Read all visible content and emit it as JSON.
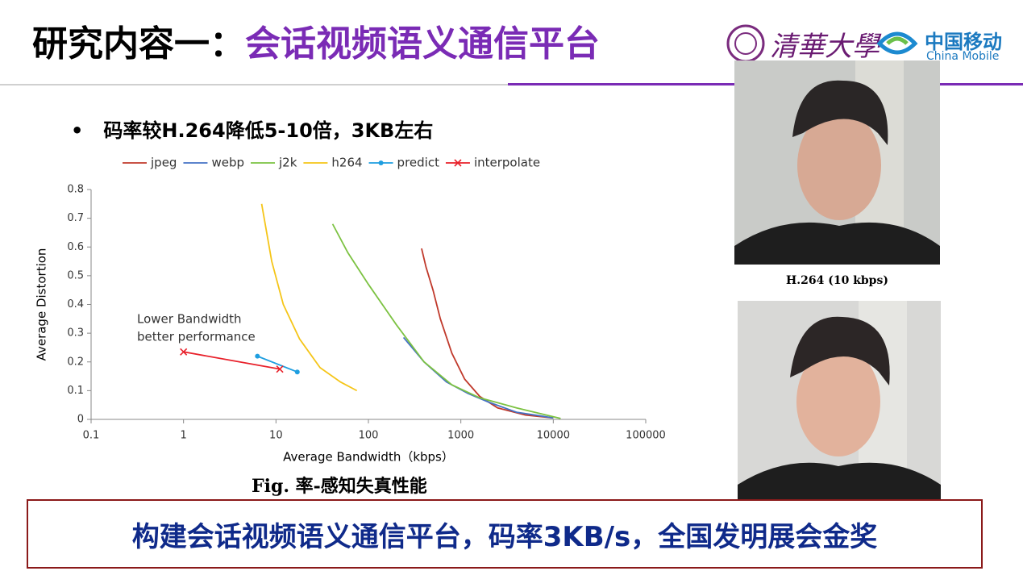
{
  "header": {
    "title_prefix": "研究内容一：",
    "title_main": "会话视频语义通信平台",
    "logo_university": "清華大學",
    "logo_company": "中国移动",
    "logo_company_en": "China Mobile"
  },
  "bullet": "码率较H.264降低5-10倍，3KB左右",
  "chart_data": {
    "type": "line",
    "xlabel": "Average Bandwidth（kbps）",
    "ylabel": "Average Distortion",
    "xlog": true,
    "xlim": [
      0.1,
      100000
    ],
    "xticks": [
      0.1,
      1,
      10,
      100,
      1000,
      10000,
      100000
    ],
    "ylim": [
      0,
      0.8
    ],
    "yticks": [
      0,
      0.1,
      0.2,
      0.3,
      0.4,
      0.5,
      0.6,
      0.7,
      0.8
    ],
    "legend": "top",
    "annotation": [
      "Lower Bandwidth",
      "better performance"
    ],
    "series": [
      {
        "name": "jpeg",
        "color": "#c0392b",
        "x": [
          376,
          420,
          500,
          600,
          800,
          1100,
          1600,
          2500,
          5000,
          10000
        ],
        "values": [
          0.595,
          0.53,
          0.45,
          0.35,
          0.23,
          0.14,
          0.08,
          0.04,
          0.015,
          0.005
        ]
      },
      {
        "name": "webp",
        "color": "#4472c4",
        "x": [
          240,
          400,
          700,
          1200,
          2000,
          4000,
          8000,
          10000
        ],
        "values": [
          0.285,
          0.2,
          0.13,
          0.09,
          0.06,
          0.025,
          0.01,
          0.005
        ]
      },
      {
        "name": "j2k",
        "color": "#7cc242",
        "x": [
          41,
          60,
          100,
          200,
          400,
          800,
          1600,
          4000,
          12000
        ],
        "values": [
          0.68,
          0.58,
          0.47,
          0.33,
          0.2,
          0.12,
          0.075,
          0.04,
          0.003
        ]
      },
      {
        "name": "h264",
        "color": "#f5c518",
        "x": [
          7,
          9,
          12,
          18,
          30,
          50,
          75
        ],
        "values": [
          0.75,
          0.55,
          0.4,
          0.28,
          0.18,
          0.13,
          0.1
        ]
      },
      {
        "name": "predict",
        "color": "#1e9ee0",
        "marker": "o",
        "x": [
          6.3,
          17
        ],
        "values": [
          0.22,
          0.165
        ]
      },
      {
        "name": "interpolate",
        "color": "#e8202a",
        "marker": "x",
        "x": [
          1,
          11
        ],
        "values": [
          0.235,
          0.175
        ]
      }
    ]
  },
  "figure_caption": "Fig. 率-感知失真性能",
  "video_caption": "H.264 (10 kbps)",
  "banner": "构建会话视频语义通信平台，码率3KB/s，全国发明展会金奖"
}
